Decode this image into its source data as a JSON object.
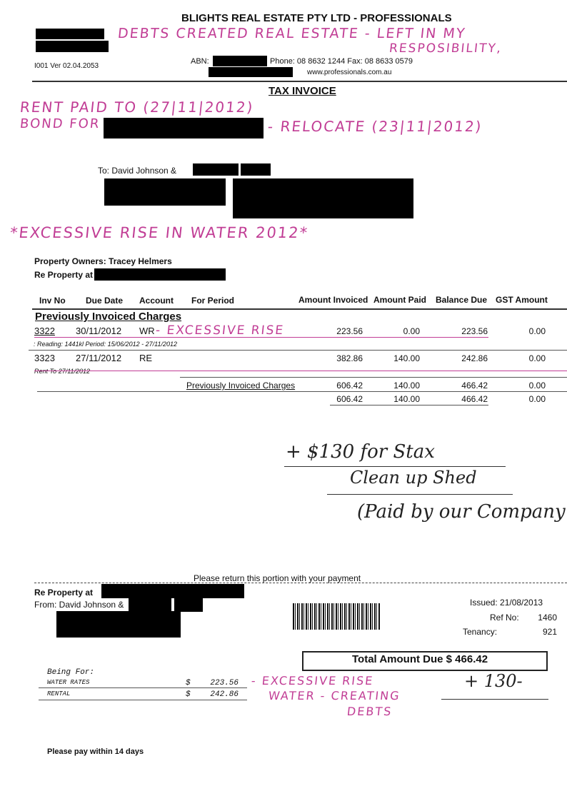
{
  "header": {
    "company": "BLIGHTS REAL ESTATE PTY LTD - PROFESSIONALS",
    "version": "I001 Ver 02.04.2053",
    "abn_label": "ABN:",
    "phone_fax": "Phone: 08 8632 1244  Fax: 08 8633 0579",
    "website": "www.professionals.com.au",
    "title": "TAX INVOICE"
  },
  "recipient": {
    "to": "To: David Johnson &",
    "owners": "Property Owners: Tracey Helmers",
    "re_property": "Re Property at"
  },
  "table": {
    "headers": [
      "Inv No",
      "Due Date",
      "Account",
      "For Period",
      "Amount Invoiced",
      "Amount Paid",
      "Balance Due",
      "GST Amount"
    ],
    "section_title": "Previously Invoiced Charges",
    "rows": [
      {
        "inv": "3322",
        "due": "30/11/2012",
        "account": "WR",
        "invoiced": "223.56",
        "paid": "0.00",
        "balance": "223.56",
        "gst": "0.00",
        "note": ": Reading: 1441kl Period: 15/06/2012 - 27/11/2012"
      },
      {
        "inv": "3323",
        "due": "27/11/2012",
        "account": "RE",
        "invoiced": "382.86",
        "paid": "140.00",
        "balance": "242.86",
        "gst": "0.00",
        "note": "Rent To 27/11/2012"
      }
    ],
    "subtotal": {
      "label": "Previously Invoiced Charges",
      "invoiced": "606.42",
      "paid": "140.00",
      "balance": "466.42",
      "gst": "0.00"
    },
    "total": {
      "invoiced": "606.42",
      "paid": "140.00",
      "balance": "466.42",
      "gst": "0.00"
    }
  },
  "remittance": {
    "return_note": "Please return this portion with your payment",
    "re_property": "Re Property at",
    "from": "From: David Johnson &",
    "issued": "Issued: 21/08/2013",
    "ref_label": "Ref No:",
    "ref": "1460",
    "tenancy_label": "Tenancy:",
    "tenancy": "921",
    "total_due": "Total Amount Due $ 466.42",
    "being_for": "Being For:",
    "items": [
      {
        "label": "WATER RATES",
        "cur": "$",
        "amount": "223.56"
      },
      {
        "label": "RENTAL",
        "cur": "$",
        "amount": "242.86"
      }
    ],
    "pay_within": "Please pay within 14 days"
  },
  "handwriting": {
    "debts1": "DEBTS CREATED REAL ESTATE - LEFT IN MY",
    "debts2": "RESPOSIBILITY,",
    "rent_paid": "RENT PAID TO (27|11|2012)",
    "bond_for": "BOND FOR",
    "relocate": "- RELOCATE (23|11|2012)",
    "excessive_water": "*EXCESSIVE RISE IN WATER 2012*",
    "excessive_rise": "- EXCESSIVE RISE",
    "stax1": "+ $130 for Stax",
    "stax2": "Clean up Shed",
    "stax3": "(Paid by our Company",
    "bottom1": "- EXCESSIVE RISE",
    "bottom2": "WATER - CREATING",
    "bottom3": "DEBTS",
    "plus130": "+ 130-"
  },
  "colors": {
    "ink": "#c13d95"
  }
}
